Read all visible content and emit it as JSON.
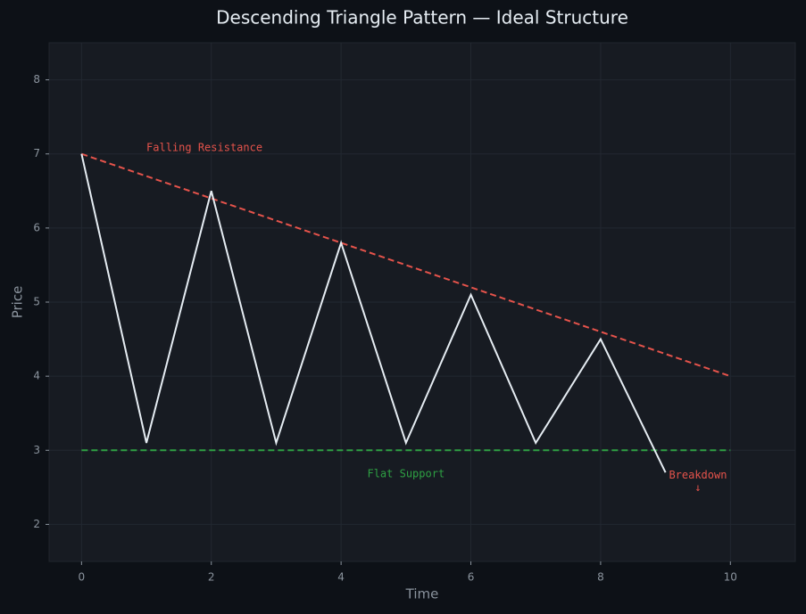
{
  "chart_data": {
    "type": "line",
    "title": "Descending Triangle Pattern — Ideal Structure",
    "x_label": "Time",
    "y_label": "Price",
    "xlim": [
      -0.5,
      11
    ],
    "ylim": [
      1.5,
      8.5
    ],
    "xticks": [
      0,
      2,
      4,
      6,
      8,
      10
    ],
    "yticks": [
      2,
      3,
      4,
      5,
      6,
      7,
      8
    ],
    "grid": true,
    "series": [
      {
        "x": [
          0,
          1,
          2,
          3,
          4,
          5,
          6,
          7,
          8,
          9
        ],
        "values": [
          7,
          3.1,
          6.5,
          3.1,
          5.8,
          3.1,
          5.1,
          3.1,
          4.5,
          2.7
        ],
        "color": "#e6edf3",
        "dashed": false
      },
      {
        "x": [
          0,
          10
        ],
        "values": [
          7,
          4
        ],
        "color": "#e5534b",
        "dashed": true
      },
      {
        "x": [
          0,
          10
        ],
        "values": [
          3,
          3
        ],
        "color": "#2ea043",
        "dashed": true
      }
    ],
    "annotations": [
      {
        "text": "Falling Resistance",
        "x": 1,
        "y": 7.08,
        "color": "#e5534b",
        "align": "start"
      },
      {
        "text": "Flat Support",
        "x": 5,
        "y": 2.68,
        "color": "#2ea043",
        "align": "middle"
      },
      {
        "text": "Breakdown",
        "x": 9.5,
        "y": 2.66,
        "color": "#e5534b",
        "align": "middle"
      },
      {
        "text": "↓",
        "x": 9.5,
        "y": 2.49,
        "color": "#e5534b",
        "align": "middle"
      }
    ]
  }
}
